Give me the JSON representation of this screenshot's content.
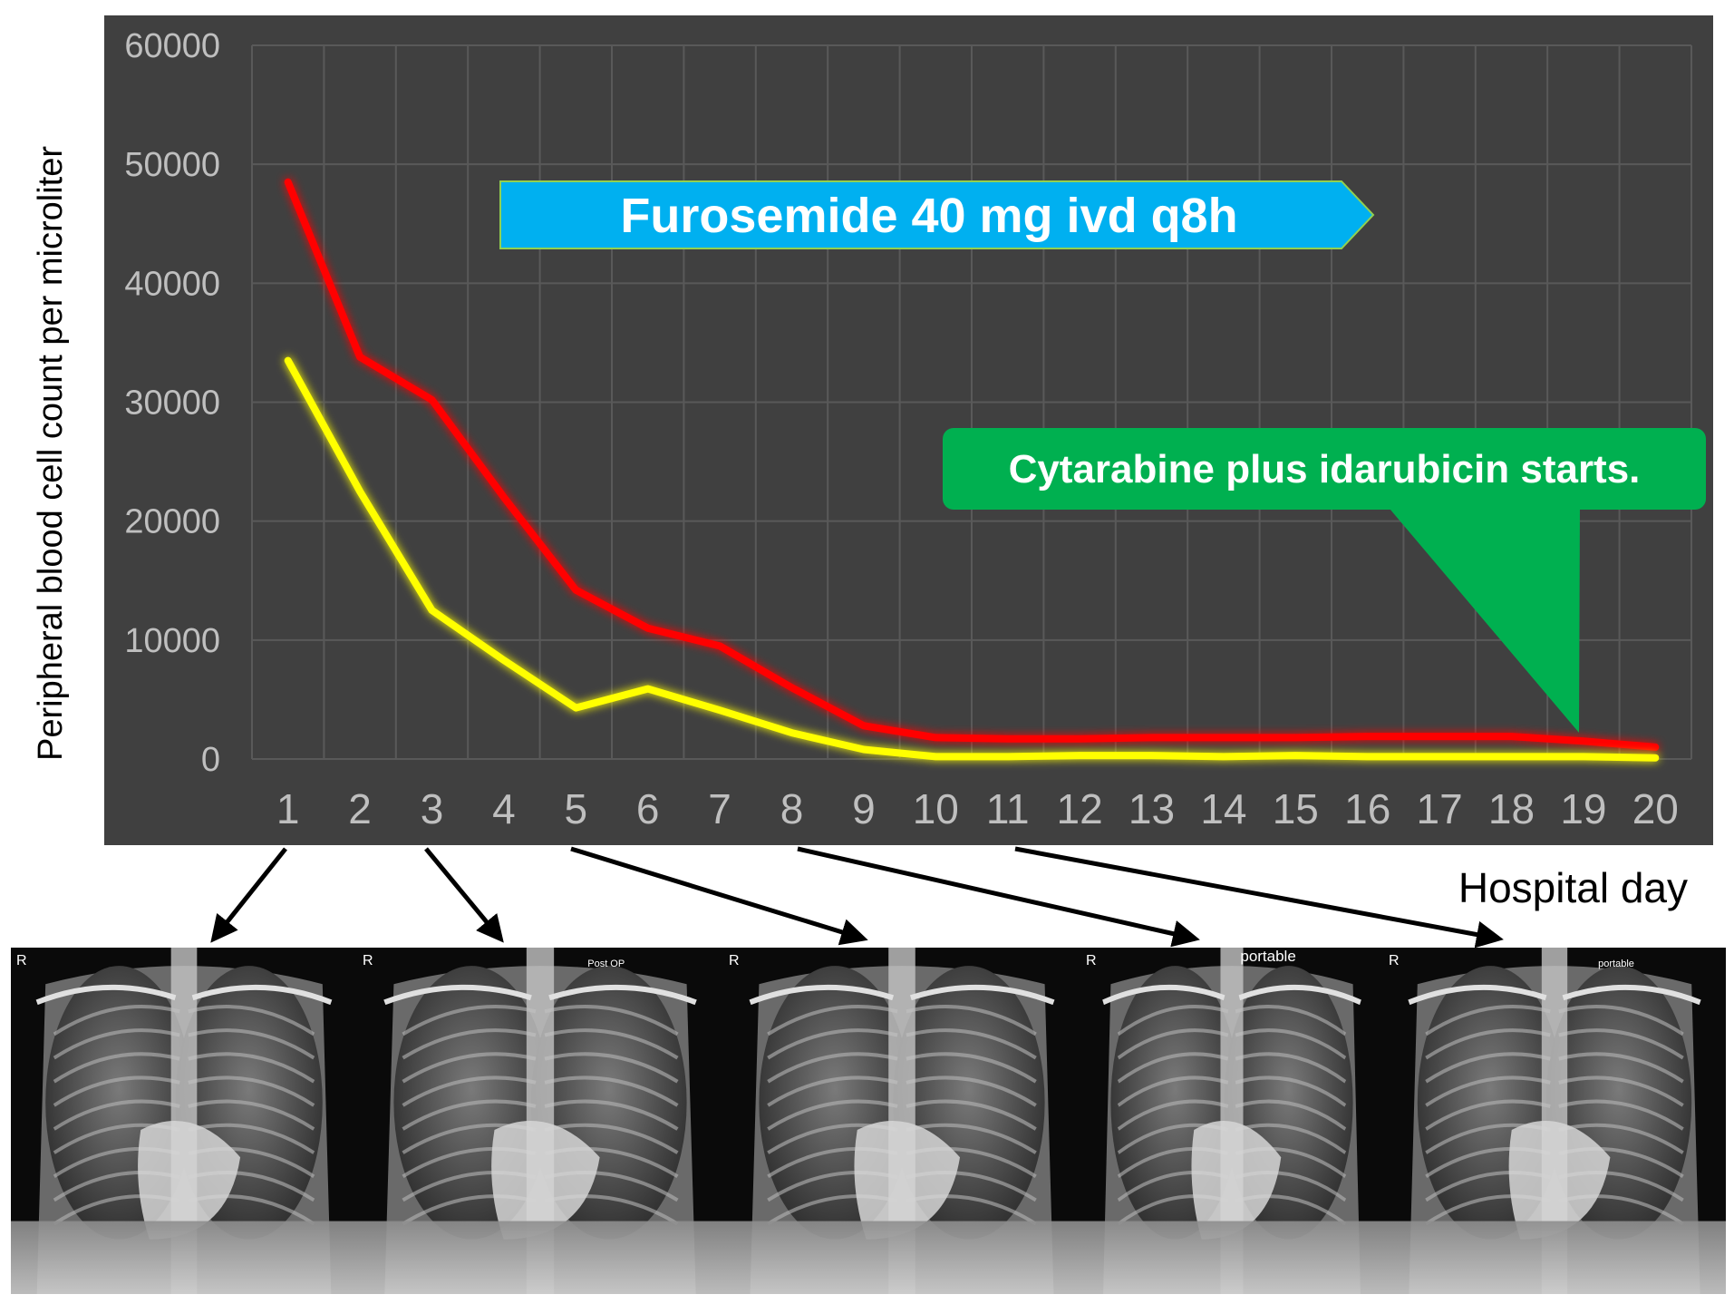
{
  "chart_data": {
    "type": "line",
    "title": "",
    "xlabel": "Hospital day",
    "ylabel": "Peripheral blood cell count per microliter",
    "x": [
      1,
      2,
      3,
      4,
      5,
      6,
      7,
      8,
      9,
      10,
      11,
      12,
      13,
      14,
      15,
      16,
      17,
      18,
      19,
      20
    ],
    "xlim": [
      0.5,
      20.5
    ],
    "ylim": [
      0,
      60000
    ],
    "yticks": [
      "0",
      "10000",
      "20000",
      "30000",
      "40000",
      "50000",
      "60000"
    ],
    "xticks": [
      "1",
      "2",
      "3",
      "4",
      "5",
      "6",
      "7",
      "8",
      "9",
      "10",
      "11",
      "12",
      "13",
      "14",
      "15",
      "16",
      "17",
      "18",
      "19",
      "20"
    ],
    "grid": true,
    "legend": "none",
    "series": [
      {
        "color": "#ff0000",
        "values": [
          48500,
          33800,
          30200,
          22000,
          14200,
          11000,
          9500,
          6000,
          2800,
          1800,
          1700,
          1700,
          1800,
          1800,
          1800,
          1900,
          1900,
          1900,
          1500,
          1000
        ]
      },
      {
        "color": "#ffff00",
        "values": [
          33500,
          22500,
          12500,
          8300,
          4300,
          5900,
          4100,
          2200,
          800,
          200,
          200,
          300,
          300,
          200,
          300,
          200,
          200,
          200,
          200,
          100
        ]
      }
    ],
    "annotations": [
      {
        "text": "Furosemide 40 mg ivd q8h",
        "color": "#00b0f0",
        "shape": "arrow"
      },
      {
        "text": "Cytarabine plus idarubicin starts.",
        "color": "#00b050",
        "shape": "callout",
        "points_to_day": 19
      }
    ]
  },
  "colors": {
    "plot_background": "#404040",
    "grid": "#595959",
    "tick_label": "#bfbfbf",
    "axis_title": "#000000"
  },
  "xrays": [
    {
      "side_marker": "R",
      "caption": "",
      "from_day": 1
    },
    {
      "side_marker": "R",
      "caption": "Post OP",
      "from_day": 3
    },
    {
      "side_marker": "R",
      "caption": "",
      "from_day": 5
    },
    {
      "side_marker": "R",
      "caption": "portable",
      "from_day": 8
    },
    {
      "side_marker": "R",
      "caption": "portable",
      "from_day": 11
    }
  ]
}
